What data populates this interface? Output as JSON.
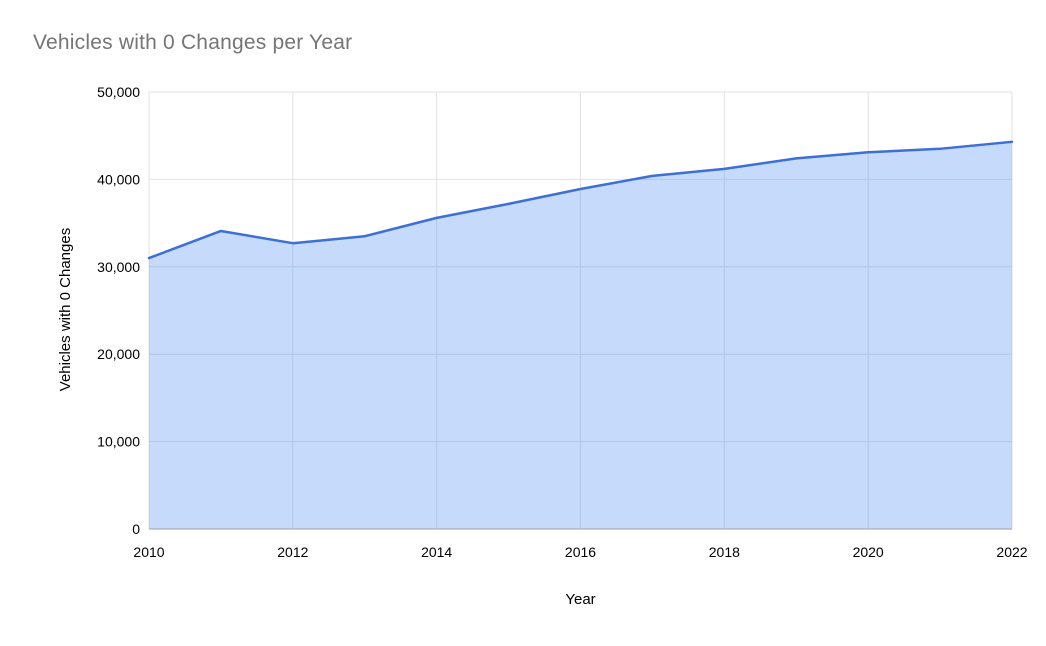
{
  "page": {
    "background": "#ffffff"
  },
  "chart_data": {
    "type": "area",
    "title": "Vehicles with 0 Changes per Year",
    "xlabel": "Year",
    "ylabel": "Vehicles with 0 Changes",
    "series": [
      {
        "name": "Vehicles with 0 Changes",
        "x": [
          2010,
          2011,
          2012,
          2013,
          2014,
          2015,
          2016,
          2017,
          2018,
          2019,
          2020,
          2021,
          2022
        ],
        "values": [
          31000,
          34100,
          32700,
          33500,
          35600,
          37200,
          38900,
          40400,
          41200,
          42400,
          43100,
          43500,
          44300
        ]
      }
    ],
    "xlim": [
      2010,
      2022
    ],
    "ylim": [
      0,
      50000
    ],
    "x_ticks": [
      2010,
      2012,
      2014,
      2016,
      2018,
      2020,
      2022
    ],
    "x_tick_labels": [
      "2010",
      "2012",
      "2014",
      "2016",
      "2018",
      "2020",
      "2022"
    ],
    "y_ticks": [
      0,
      10000,
      20000,
      30000,
      40000,
      50000
    ],
    "y_tick_labels": [
      "0",
      "10,000",
      "20,000",
      "30,000",
      "40,000",
      "50,000"
    ],
    "grid": true,
    "legend": "none",
    "colors": {
      "line": "#3d6fd6",
      "fill": "rgba(66,133,244,0.30)",
      "grid": "#e2e2e2",
      "baseline": "#9e9e9e",
      "title_text": "#757575",
      "tick_text": "#000000"
    }
  }
}
